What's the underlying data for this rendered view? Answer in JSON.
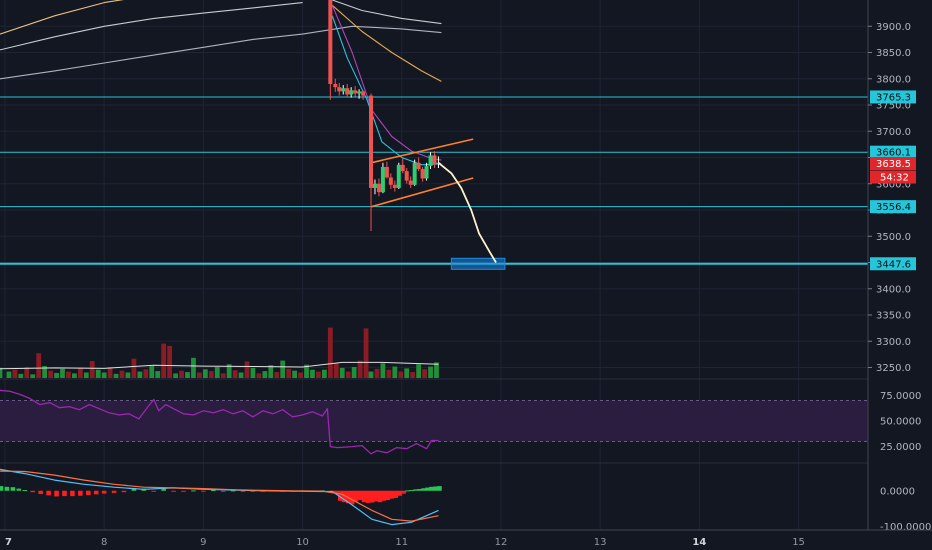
{
  "colors": {
    "background": "#131722",
    "grid": "#1e2433",
    "up": "#26a69a",
    "down": "#ef5350",
    "price_line": "#26c6da",
    "rsi_line": "#9c27b0",
    "rsi_band": "#2a1d3f",
    "macd_line": "#4fc3f7",
    "signal_line": "#ff7043",
    "channel": "#ff7f2a",
    "projection": "#fff3cf",
    "target_box": "#1e88e5"
  },
  "chart_data": [
    {
      "type": "candlestick",
      "panel": "price",
      "title": "",
      "xlabel": "",
      "ylabel": "",
      "x_ticks": [
        "7",
        "8",
        "9",
        "10",
        "11",
        "12",
        "13",
        "14",
        "15"
      ],
      "y_ticks": [
        3250.0,
        3300.0,
        3350.0,
        3400.0,
        3450.0,
        3500.0,
        3550.0,
        3600.0,
        3650.0,
        3700.0,
        3750.0,
        3800.0,
        3850.0,
        3900.0
      ],
      "ylim": [
        3230,
        3950
      ],
      "xlim": [
        6.95,
        15.7
      ],
      "horizontal_levels": [
        {
          "price": 3765.3,
          "label": "3765.3"
        },
        {
          "price": 3660.1,
          "label": "3660.1"
        },
        {
          "price": 3556.4,
          "label": "3556.4"
        },
        {
          "price": 3447.6,
          "label": "3447.6"
        }
      ],
      "current_price": {
        "price": 3638.5,
        "label": "3638.5",
        "countdown": "54:32"
      },
      "moving_averages": [
        {
          "color": "#e8c07d",
          "points": [
            [
              6.95,
              3885
            ],
            [
              7.5,
              3920
            ],
            [
              8.0,
              3945
            ],
            [
              8.5,
              3960
            ]
          ]
        },
        {
          "color": "#c9cbd1",
          "points": [
            [
              6.95,
              3855
            ],
            [
              7.5,
              3880
            ],
            [
              8.0,
              3900
            ],
            [
              8.5,
              3915
            ],
            [
              9.0,
              3925
            ],
            [
              9.5,
              3935
            ],
            [
              10.0,
              3945
            ]
          ]
        },
        {
          "color": "#aeb3bd",
          "points": [
            [
              6.95,
              3800
            ],
            [
              7.5,
              3815
            ],
            [
              8.0,
              3830
            ],
            [
              8.5,
              3845
            ],
            [
              9.0,
              3860
            ],
            [
              9.5,
              3875
            ],
            [
              10.0,
              3885
            ],
            [
              10.5,
              3900
            ],
            [
              11.0,
              3895
            ],
            [
              11.4,
              3888
            ]
          ]
        },
        {
          "color": "#c9cbd1",
          "points": [
            [
              10.3,
              3950
            ],
            [
              10.6,
              3930
            ],
            [
              11.0,
              3915
            ],
            [
              11.4,
              3905
            ]
          ]
        },
        {
          "color": "#e8a94d",
          "points": [
            [
              10.3,
              3940
            ],
            [
              10.6,
              3890
            ],
            [
              10.9,
              3850
            ],
            [
              11.2,
              3815
            ],
            [
              11.4,
              3795
            ]
          ]
        },
        {
          "color": "#ab47bc",
          "points": [
            [
              10.3,
              3940
            ],
            [
              10.5,
              3850
            ],
            [
              10.7,
              3740
            ],
            [
              10.9,
              3690
            ],
            [
              11.1,
              3662
            ],
            [
              11.3,
              3648
            ],
            [
              11.4,
              3645
            ]
          ]
        },
        {
          "color": "#26c6da",
          "points": [
            [
              10.3,
              3920
            ],
            [
              10.45,
              3840
            ],
            [
              10.65,
              3760
            ],
            [
              10.8,
              3680
            ],
            [
              11.0,
              3650
            ],
            [
              11.2,
              3636
            ],
            [
              11.4,
              3638
            ]
          ]
        }
      ],
      "candles": [
        {
          "x": 10.28,
          "o": 3950,
          "h": 3955,
          "l": 3760,
          "c": 3790
        },
        {
          "x": 10.33,
          "o": 3790,
          "h": 3800,
          "l": 3775,
          "c": 3784
        },
        {
          "x": 10.37,
          "o": 3784,
          "h": 3792,
          "l": 3768,
          "c": 3776
        },
        {
          "x": 10.41,
          "o": 3776,
          "h": 3788,
          "l": 3770,
          "c": 3782
        },
        {
          "x": 10.45,
          "o": 3782,
          "h": 3790,
          "l": 3764,
          "c": 3770
        },
        {
          "x": 10.49,
          "o": 3770,
          "h": 3784,
          "l": 3764,
          "c": 3778
        },
        {
          "x": 10.53,
          "o": 3778,
          "h": 3786,
          "l": 3766,
          "c": 3772
        },
        {
          "x": 10.57,
          "o": 3772,
          "h": 3780,
          "l": 3762,
          "c": 3776
        },
        {
          "x": 10.61,
          "o": 3776,
          "h": 3778,
          "l": 3760,
          "c": 3768
        },
        {
          "x": 10.69,
          "o": 3768,
          "h": 3772,
          "l": 3510,
          "c": 3592
        },
        {
          "x": 10.73,
          "o": 3592,
          "h": 3608,
          "l": 3580,
          "c": 3600
        },
        {
          "x": 10.77,
          "o": 3600,
          "h": 3610,
          "l": 3576,
          "c": 3584
        },
        {
          "x": 10.81,
          "o": 3584,
          "h": 3640,
          "l": 3582,
          "c": 3632
        },
        {
          "x": 10.85,
          "o": 3632,
          "h": 3642,
          "l": 3610,
          "c": 3612
        },
        {
          "x": 10.89,
          "o": 3612,
          "h": 3620,
          "l": 3590,
          "c": 3598
        },
        {
          "x": 10.93,
          "o": 3598,
          "h": 3606,
          "l": 3585,
          "c": 3592
        },
        {
          "x": 10.97,
          "o": 3592,
          "h": 3640,
          "l": 3590,
          "c": 3636
        },
        {
          "x": 11.01,
          "o": 3636,
          "h": 3648,
          "l": 3620,
          "c": 3624
        },
        {
          "x": 11.05,
          "o": 3624,
          "h": 3630,
          "l": 3600,
          "c": 3606
        },
        {
          "x": 11.09,
          "o": 3606,
          "h": 3614,
          "l": 3592,
          "c": 3598
        },
        {
          "x": 11.13,
          "o": 3598,
          "h": 3646,
          "l": 3596,
          "c": 3640
        },
        {
          "x": 11.17,
          "o": 3640,
          "h": 3650,
          "l": 3624,
          "c": 3628
        },
        {
          "x": 11.21,
          "o": 3628,
          "h": 3632,
          "l": 3604,
          "c": 3610
        },
        {
          "x": 11.25,
          "o": 3610,
          "h": 3640,
          "l": 3606,
          "c": 3634
        },
        {
          "x": 11.29,
          "o": 3634,
          "h": 3660,
          "l": 3628,
          "c": 3654
        },
        {
          "x": 11.33,
          "o": 3654,
          "h": 3662,
          "l": 3630,
          "c": 3638
        },
        {
          "x": 11.37,
          "o": 3638,
          "h": 3652,
          "l": 3630,
          "c": 3640
        }
      ],
      "channel": {
        "upper": [
          [
            10.69,
            3640
          ],
          [
            11.72,
            3685
          ]
        ],
        "lower": [
          [
            10.69,
            3556
          ],
          [
            11.72,
            3611
          ]
        ]
      },
      "projection_path": [
        [
          11.37,
          3640
        ],
        [
          11.5,
          3620
        ],
        [
          11.6,
          3592
        ],
        [
          11.7,
          3550
        ],
        [
          11.78,
          3505
        ],
        [
          11.88,
          3472
        ],
        [
          11.95,
          3450
        ]
      ],
      "target_box": {
        "x0": 11.5,
        "x1": 12.04,
        "y0": 3437,
        "y1": 3458
      }
    },
    {
      "type": "bar",
      "panel": "volume",
      "title": "",
      "ylim": [
        0,
        170
      ],
      "x": [
        6.95,
        7.04,
        7.1,
        7.16,
        7.22,
        7.28,
        7.34,
        7.4,
        7.46,
        7.52,
        7.58,
        7.64,
        7.7,
        7.76,
        7.82,
        7.88,
        7.94,
        8.0,
        8.06,
        8.12,
        8.18,
        8.24,
        8.3,
        8.36,
        8.42,
        8.48,
        8.54,
        8.6,
        8.66,
        8.72,
        8.78,
        8.84,
        8.9,
        8.96,
        9.02,
        9.08,
        9.14,
        9.2,
        9.26,
        9.32,
        9.38,
        9.44,
        9.5,
        9.56,
        9.62,
        9.68,
        9.74,
        9.8,
        9.86,
        9.92,
        9.98,
        10.04,
        10.1,
        10.16,
        10.22,
        10.28,
        10.34,
        10.4,
        10.46,
        10.52,
        10.58,
        10.64,
        10.69,
        10.75,
        10.81,
        10.87,
        10.93,
        10.99,
        11.05,
        11.11,
        11.17,
        11.23,
        11.29,
        11.35
      ],
      "values": [
        22,
        14,
        18,
        9,
        24,
        8,
        54,
        26,
        16,
        11,
        20,
        14,
        10,
        22,
        12,
        37,
        18,
        12,
        24,
        9,
        16,
        12,
        42,
        14,
        19,
        26,
        15,
        75,
        70,
        10,
        16,
        13,
        44,
        12,
        19,
        15,
        24,
        10,
        30,
        17,
        12,
        36,
        22,
        10,
        15,
        28,
        13,
        38,
        20,
        16,
        12,
        29,
        18,
        14,
        18,
        110,
        32,
        22,
        14,
        24,
        38,
        108,
        14,
        20,
        32,
        18,
        25,
        14,
        21,
        13,
        30,
        19,
        25,
        34
      ],
      "up": [
        true,
        true,
        false,
        true,
        false,
        true,
        false,
        true,
        false,
        true,
        true,
        false,
        true,
        false,
        true,
        false,
        true,
        true,
        false,
        true,
        false,
        true,
        false,
        true,
        false,
        true,
        true,
        false,
        false,
        true,
        false,
        true,
        true,
        false,
        true,
        false,
        true,
        false,
        true,
        false,
        true,
        false,
        true,
        false,
        true,
        true,
        false,
        true,
        false,
        true,
        false,
        true,
        true,
        false,
        true,
        false,
        false,
        true,
        false,
        true,
        false,
        false,
        true,
        false,
        true,
        false,
        true,
        false,
        true,
        false,
        true,
        false,
        true,
        true
      ],
      "ma": [
        [
          6.95,
          20
        ],
        [
          7.5,
          22
        ],
        [
          8.0,
          21
        ],
        [
          8.5,
          28
        ],
        [
          9.0,
          26
        ],
        [
          9.5,
          25
        ],
        [
          10.0,
          24
        ],
        [
          10.4,
          34
        ],
        [
          10.8,
          34
        ],
        [
          11.37,
          30
        ]
      ]
    },
    {
      "type": "line",
      "panel": "rsi",
      "title": "",
      "y_ticks": [
        75.0,
        50.0,
        25.0
      ],
      "y_tick_labels": [
        "75.0000",
        "50.0000",
        "25.0000"
      ],
      "ylim": [
        10,
        90
      ],
      "band": [
        30,
        70
      ],
      "x": [
        6.95,
        7.05,
        7.15,
        7.25,
        7.35,
        7.45,
        7.55,
        7.65,
        7.75,
        7.85,
        7.95,
        8.05,
        8.15,
        8.25,
        8.35,
        8.45,
        8.5,
        8.55,
        8.62,
        8.7,
        8.8,
        8.9,
        9.0,
        9.1,
        9.2,
        9.3,
        9.4,
        9.5,
        9.6,
        9.7,
        9.8,
        9.9,
        10.0,
        10.1,
        10.2,
        10.25,
        10.28,
        10.35,
        10.5,
        10.6,
        10.69,
        10.75,
        10.85,
        10.95,
        11.05,
        11.15,
        11.25,
        11.3,
        11.37
      ],
      "values": [
        80,
        79,
        76,
        72,
        66,
        68,
        63,
        64,
        61,
        66,
        62,
        58,
        56,
        57,
        52,
        65,
        71,
        60,
        66,
        62,
        57,
        56,
        60,
        58,
        61,
        57,
        60,
        54,
        60,
        57,
        61,
        54,
        56,
        59,
        55,
        62,
        25,
        24,
        25,
        26,
        18,
        21,
        19,
        24,
        23,
        28,
        23,
        31,
        31
      ]
    },
    {
      "type": "line",
      "panel": "macd",
      "title": "",
      "y_ticks": [
        0,
        -100
      ],
      "y_tick_labels": [
        "0.0000",
        "-100.0000"
      ],
      "ylim": [
        -110,
        75
      ],
      "series": [
        {
          "role": "macd",
          "points": [
            [
              6.95,
              60
            ],
            [
              7.2,
              48
            ],
            [
              7.5,
              30
            ],
            [
              7.8,
              18
            ],
            [
              8.1,
              10
            ],
            [
              8.4,
              4
            ],
            [
              8.7,
              8
            ],
            [
              9.0,
              4
            ],
            [
              9.3,
              2
            ],
            [
              9.6,
              0
            ],
            [
              9.9,
              -1
            ],
            [
              10.2,
              -2
            ],
            [
              10.3,
              -2
            ],
            [
              10.5,
              -40
            ],
            [
              10.7,
              -80
            ],
            [
              10.9,
              -95
            ],
            [
              11.1,
              -88
            ],
            [
              11.37,
              -55
            ]
          ]
        },
        {
          "role": "signal",
          "points": [
            [
              6.95,
              55
            ],
            [
              7.2,
              54
            ],
            [
              7.5,
              44
            ],
            [
              7.8,
              30
            ],
            [
              8.1,
              18
            ],
            [
              8.4,
              10
            ],
            [
              8.7,
              8
            ],
            [
              9.0,
              6
            ],
            [
              9.3,
              3
            ],
            [
              9.6,
              1
            ],
            [
              9.9,
              0
            ],
            [
              10.2,
              -1
            ],
            [
              10.4,
              -10
            ],
            [
              10.7,
              -55
            ],
            [
              10.9,
              -80
            ],
            [
              11.1,
              -85
            ],
            [
              11.37,
              -70
            ]
          ]
        }
      ],
      "histogram": {
        "x": [
          6.96,
          7.02,
          7.08,
          7.14,
          7.2,
          7.28,
          7.36,
          7.44,
          7.52,
          7.6,
          7.68,
          7.76,
          7.84,
          7.92,
          8.0,
          8.1,
          8.2,
          8.3,
          8.4,
          8.5,
          8.6,
          8.7,
          8.8,
          8.9,
          9.0,
          9.1,
          9.2,
          9.3,
          9.4,
          9.5,
          9.6,
          9.7,
          9.8,
          9.9,
          10.0,
          10.1,
          10.2,
          10.3,
          10.34,
          10.38,
          10.42,
          10.46,
          10.5,
          10.54,
          10.58,
          10.62,
          10.66,
          10.7,
          10.74,
          10.78,
          10.82,
          10.86,
          10.9,
          10.94,
          10.98,
          11.02,
          11.06,
          11.1,
          11.14,
          11.18,
          11.22,
          11.26,
          11.3,
          11.34,
          11.38
        ],
        "values": [
          13,
          11,
          10,
          6,
          2,
          -4,
          -9,
          -13,
          -16,
          -15,
          -15,
          -14,
          -12,
          -10,
          -8,
          -6,
          -4,
          8,
          6,
          -2,
          6,
          -1,
          -2,
          1,
          -2,
          2,
          -1,
          1,
          -2,
          -1,
          -2,
          1,
          -1,
          -1,
          1,
          -1,
          1,
          -3,
          -8,
          -28,
          -32,
          -35,
          -38,
          -30,
          -26,
          -32,
          -34,
          -33,
          -30,
          -32,
          -28,
          -26,
          -22,
          -20,
          -14,
          -8,
          1,
          2,
          4,
          5,
          7,
          9,
          11,
          12,
          13
        ]
      }
    }
  ]
}
